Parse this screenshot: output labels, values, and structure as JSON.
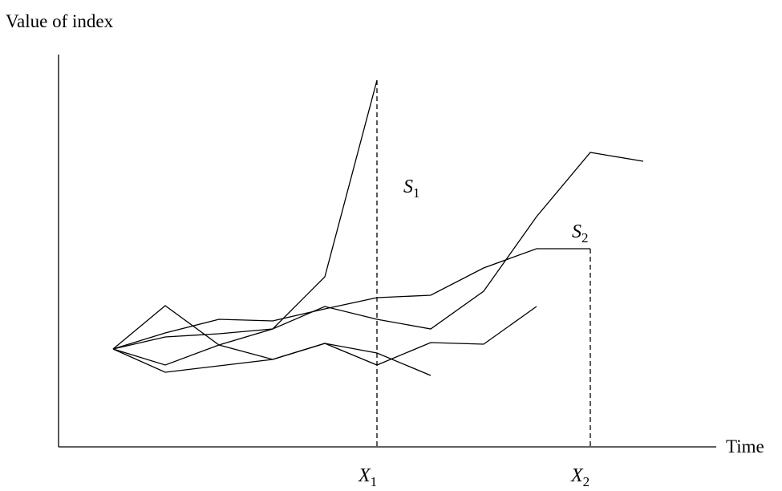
{
  "axes": {
    "y_label": "Value of index",
    "x_label": "Time"
  },
  "labels": {
    "s1": {
      "letter": "S",
      "subscript": "1"
    },
    "s2": {
      "letter": "S",
      "subscript": "2"
    },
    "x1": {
      "letter": "X",
      "subscript": "1"
    },
    "x2": {
      "letter": "X",
      "subscript": "2"
    }
  }
}
